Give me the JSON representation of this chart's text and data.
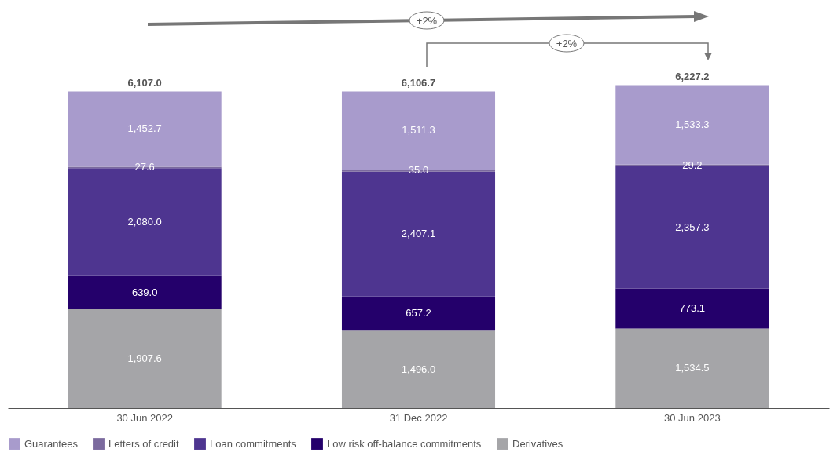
{
  "chart_data": {
    "type": "bar",
    "stacked": true,
    "categories": [
      "30 Jun 2022",
      "31 Dec 2022",
      "30 Jun 2023"
    ],
    "series": [
      {
        "name": "Derivatives",
        "color": "#a5a5a8",
        "values": [
          1907.6,
          1496.0,
          1534.5
        ],
        "value_labels": [
          "1,907.6",
          "1,496.0",
          "1,534.5"
        ]
      },
      {
        "name": "Low risk off-balance commitments",
        "color": "#24006b",
        "values": [
          639.0,
          657.2,
          773.1
        ],
        "value_labels": [
          "639.0",
          "657.2",
          "773.1"
        ]
      },
      {
        "name": "Loan commitments",
        "color": "#4e3590",
        "values": [
          2080.0,
          2407.1,
          2357.3
        ],
        "value_labels": [
          "2,080.0",
          "2,407.1",
          "2,357.3"
        ]
      },
      {
        "name": "Letters of credit",
        "color": "#7b6a9e",
        "values": [
          27.6,
          35.0,
          29.2
        ],
        "value_labels": [
          "27.6",
          "35.0",
          "29.2"
        ]
      },
      {
        "name": "Guarantees",
        "color": "#a89bcc",
        "values": [
          1452.7,
          1511.3,
          1533.3
        ],
        "value_labels": [
          "1,452.7",
          "1,511.3",
          "1,533.3"
        ]
      }
    ],
    "totals": [
      "6,107.0",
      "6,106.7",
      "6,227.2"
    ],
    "annotations": [
      "+2%",
      "+2%"
    ],
    "legend": "bottom",
    "grid": false
  }
}
